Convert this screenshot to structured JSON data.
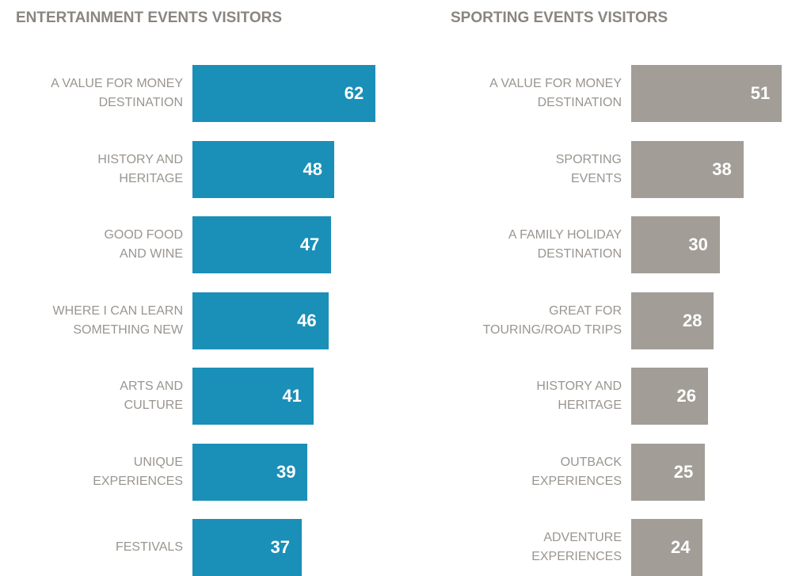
{
  "chart_data": [
    {
      "type": "bar",
      "orientation": "horizontal",
      "title": "ENTERTAINMENT EVENTS VISITORS",
      "categories": [
        "A VALUE FOR MONEY\nDESTINATION",
        "HISTORY AND\nHERITAGE",
        "GOOD FOOD\nAND WINE",
        "WHERE I CAN LEARN\nSOMETHING NEW",
        "ARTS AND\nCULTURE",
        "UNIQUE\nEXPERIENCES",
        "FESTIVALS"
      ],
      "values": [
        62,
        48,
        47,
        46,
        41,
        39,
        37
      ],
      "color": "#1a8fb8"
    },
    {
      "type": "bar",
      "orientation": "horizontal",
      "title": "SPORTING EVENTS VISITORS",
      "categories": [
        "A VALUE FOR MONEY\nDESTINATION",
        "SPORTING\nEVENTS",
        "A FAMILY HOLIDAY\nDESTINATION",
        "GREAT FOR\nTOURING/ROAD TRIPS",
        "HISTORY AND\nHERITAGE",
        "OUTBACK\nEXPERIENCES",
        "ADVENTURE\nEXPERIENCES"
      ],
      "values": [
        51,
        38,
        30,
        28,
        26,
        25,
        24
      ],
      "color": "#a29d97"
    }
  ]
}
